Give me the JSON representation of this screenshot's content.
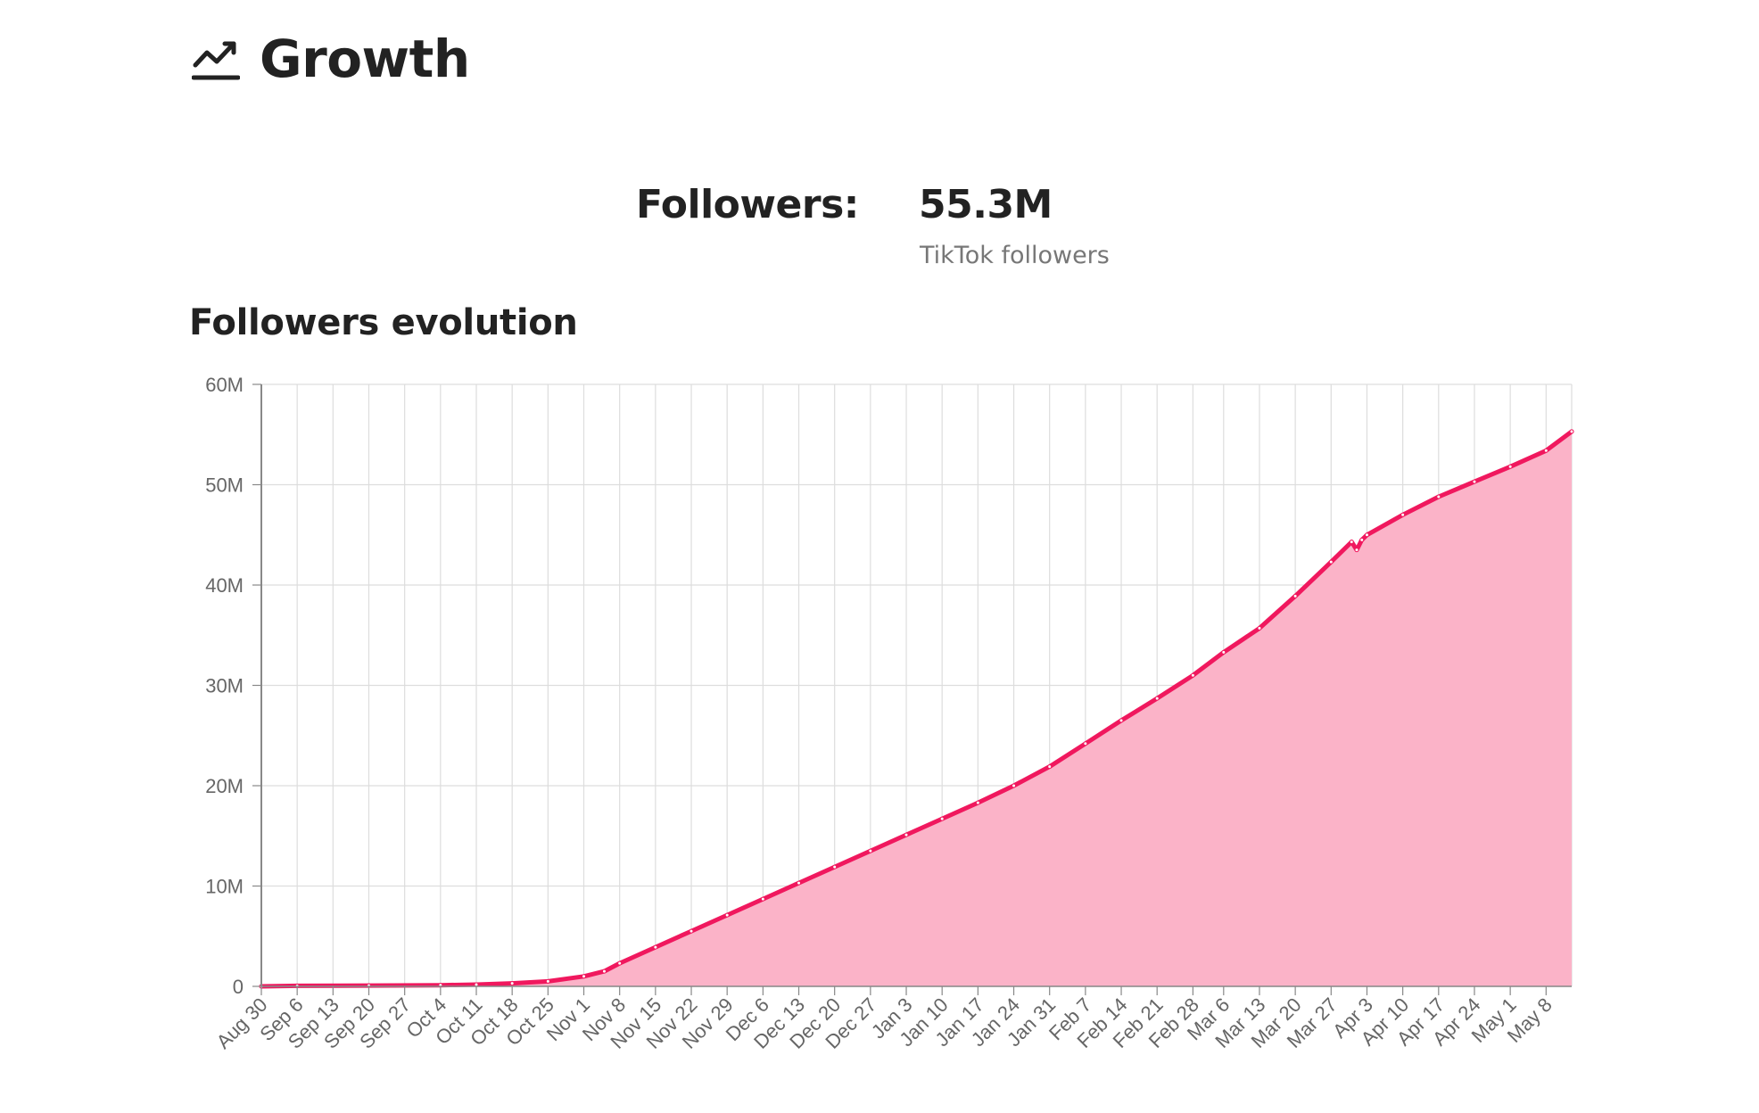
{
  "header": {
    "title": "Growth",
    "icon": "trending-up-icon"
  },
  "stats": {
    "label": "Followers:",
    "value": "55.3M",
    "sublabel": "TikTok followers"
  },
  "chart_title": "Followers evolution",
  "colors": {
    "line": "#f0185e",
    "fill": "#fbb3c8",
    "grid": "#dddddd",
    "axis": "#888888",
    "text": "#222222"
  },
  "chart_data": {
    "type": "area",
    "title": "Followers evolution",
    "xlabel": "",
    "ylabel": "",
    "ylim": [
      0,
      60000000
    ],
    "yticks": [
      {
        "value": 0,
        "label": "0"
      },
      {
        "value": 10000000,
        "label": "10M"
      },
      {
        "value": 20000000,
        "label": "20M"
      },
      {
        "value": 30000000,
        "label": "30M"
      },
      {
        "value": 40000000,
        "label": "40M"
      },
      {
        "value": 50000000,
        "label": "50M"
      },
      {
        "value": 60000000,
        "label": "60M"
      }
    ],
    "x_start": "Aug 30",
    "x_end": "May 13",
    "xtick_labels": [
      "Aug 30",
      "Sep 6",
      "Sep 13",
      "Sep 20",
      "Sep 27",
      "Oct 4",
      "Oct 11",
      "Oct 18",
      "Oct 25",
      "Nov 1",
      "Nov 8",
      "Nov 15",
      "Nov 22",
      "Nov 29",
      "Dec 6",
      "Dec 13",
      "Dec 20",
      "Dec 27",
      "Jan 3",
      "Jan 10",
      "Jan 17",
      "Jan 24",
      "Jan 31",
      "Feb 7",
      "Feb 14",
      "Feb 21",
      "Feb 28",
      "Mar 6",
      "Mar 13",
      "Mar 20",
      "Mar 27",
      "Apr 3",
      "Apr 10",
      "Apr 17",
      "Apr 24",
      "May 1",
      "May 8"
    ],
    "grid": true,
    "legend": "none",
    "series": [
      {
        "points": [
          {
            "x": "Aug 30",
            "y": 0
          },
          {
            "x": "Sep 6",
            "y": 50000
          },
          {
            "x": "Sep 20",
            "y": 80000
          },
          {
            "x": "Oct 4",
            "y": 120000
          },
          {
            "x": "Oct 11",
            "y": 180000
          },
          {
            "x": "Oct 18",
            "y": 300000
          },
          {
            "x": "Oct 25",
            "y": 500000
          },
          {
            "x": "Nov 1",
            "y": 1000000
          },
          {
            "x": "Nov 5",
            "y": 1500000
          },
          {
            "x": "Nov 8",
            "y": 2300000
          },
          {
            "x": "Nov 15",
            "y": 3900000
          },
          {
            "x": "Nov 22",
            "y": 5500000
          },
          {
            "x": "Nov 29",
            "y": 7100000
          },
          {
            "x": "Dec 6",
            "y": 8700000
          },
          {
            "x": "Dec 13",
            "y": 10300000
          },
          {
            "x": "Dec 20",
            "y": 11900000
          },
          {
            "x": "Dec 27",
            "y": 13500000
          },
          {
            "x": "Jan 3",
            "y": 15100000
          },
          {
            "x": "Jan 10",
            "y": 16700000
          },
          {
            "x": "Jan 17",
            "y": 18300000
          },
          {
            "x": "Jan 24",
            "y": 20000000
          },
          {
            "x": "Jan 31",
            "y": 21900000
          },
          {
            "x": "Feb 7",
            "y": 24200000
          },
          {
            "x": "Feb 14",
            "y": 26500000
          },
          {
            "x": "Feb 21",
            "y": 28700000
          },
          {
            "x": "Feb 28",
            "y": 31000000
          },
          {
            "x": "Mar 6",
            "y": 33300000
          },
          {
            "x": "Mar 13",
            "y": 35700000
          },
          {
            "x": "Mar 20",
            "y": 38900000
          },
          {
            "x": "Mar 27",
            "y": 42300000
          },
          {
            "x": "Mar 31",
            "y": 44300000
          },
          {
            "x": "Apr 1",
            "y": 43500000
          },
          {
            "x": "Apr 2",
            "y": 44500000
          },
          {
            "x": "Apr 3",
            "y": 45000000
          },
          {
            "x": "Apr 10",
            "y": 47000000
          },
          {
            "x": "Apr 17",
            "y": 48800000
          },
          {
            "x": "Apr 24",
            "y": 50300000
          },
          {
            "x": "May 1",
            "y": 51800000
          },
          {
            "x": "May 8",
            "y": 53400000
          },
          {
            "x": "May 13",
            "y": 55300000
          }
        ]
      }
    ]
  }
}
